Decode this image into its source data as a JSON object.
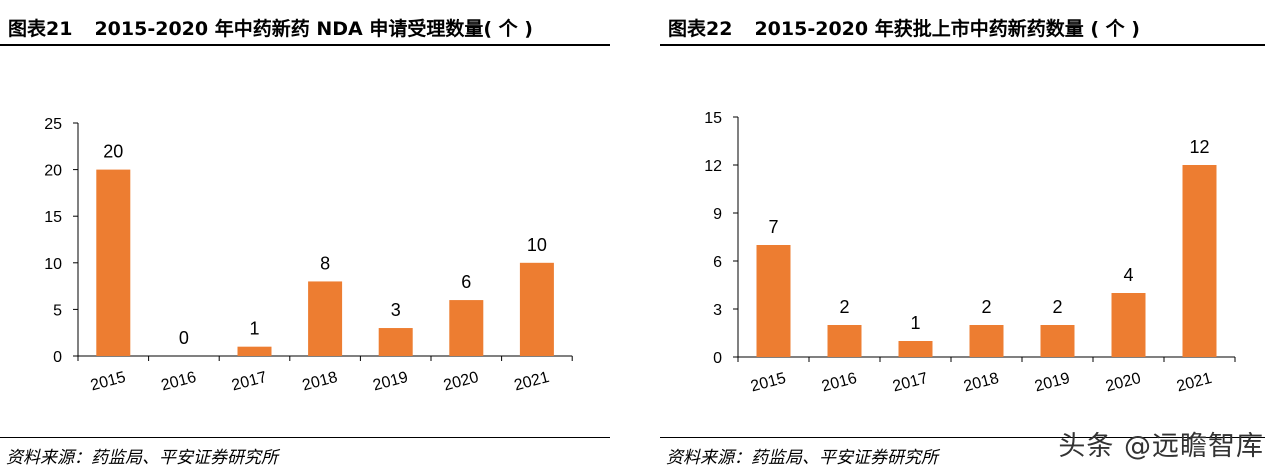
{
  "panels": [
    {
      "figure_number": "图表21",
      "title": "2015-2020 年中药新药 NDA 申请受理数量( 个 )",
      "source": "资料来源：药监局、平安证券研究所"
    },
    {
      "figure_number": "图表22",
      "title": "2015-2020 年获批上市中药新药数量 ( 个 )",
      "source": "资料来源：药监局、平安证券研究所"
    }
  ],
  "watermark": "头条 @远瞻智库",
  "colors": {
    "bar": "#ED7D31"
  },
  "chart_data": [
    {
      "type": "bar",
      "title": "2015-2020 年中药新药 NDA 申请受理数量( 个 )",
      "categories": [
        "2015",
        "2016",
        "2017",
        "2018",
        "2019",
        "2020",
        "2021"
      ],
      "values": [
        20,
        0,
        1,
        8,
        3,
        6,
        10
      ],
      "data_labels": [
        "20",
        "0",
        "1",
        "8",
        "3",
        "6",
        "10"
      ],
      "ylim": [
        0,
        25
      ],
      "yticks": [
        "0",
        "5",
        "10",
        "15",
        "20",
        "25"
      ],
      "xlabel": "",
      "ylabel": "",
      "grid": false,
      "legend": "none"
    },
    {
      "type": "bar",
      "title": "2015-2020 年获批上市中药新药数量 ( 个 )",
      "categories": [
        "2015",
        "2016",
        "2017",
        "2018",
        "2019",
        "2020",
        "2021"
      ],
      "values": [
        7,
        2,
        1,
        2,
        2,
        4,
        12
      ],
      "data_labels": [
        "7",
        "2",
        "1",
        "2",
        "2",
        "4",
        "12"
      ],
      "ylim": [
        0,
        15
      ],
      "yticks": [
        "0",
        "3",
        "6",
        "9",
        "12",
        "15"
      ],
      "xlabel": "",
      "ylabel": "",
      "grid": false,
      "legend": "none"
    }
  ]
}
